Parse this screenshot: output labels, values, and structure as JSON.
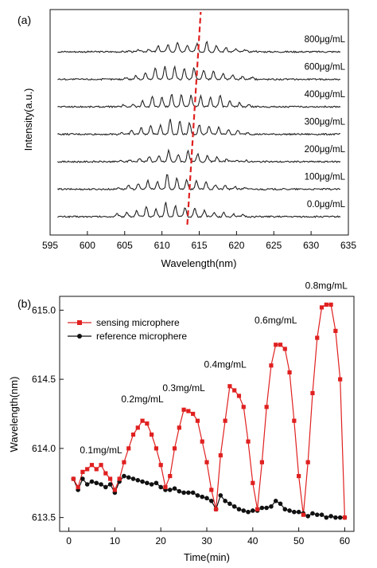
{
  "chart_data": [
    {
      "panel": "(a)",
      "type": "line",
      "xlabel": "Wavelength(nm)",
      "ylabel": "Intensity(a.u.)",
      "xlim": [
        595,
        635
      ],
      "xticks": [
        "595",
        "600",
        "605",
        "610",
        "615",
        "620",
        "625",
        "630",
        "635"
      ],
      "grid": false,
      "series": [
        {
          "name": "0.0μg/mL",
          "peak_heights": [
            0.15,
            0.25,
            0.3,
            0.55,
            0.4,
            0.75,
            0.6,
            0.5,
            0.45,
            0.35,
            0.25,
            0.2,
            0.15,
            0.1
          ],
          "resonance_nm": 613.4
        },
        {
          "name": "100μg/mL",
          "peak_heights": [
            0.1,
            0.2,
            0.3,
            0.45,
            0.4,
            0.8,
            0.6,
            0.5,
            0.45,
            0.4,
            0.25,
            0.2,
            0.15,
            0.1
          ],
          "resonance_nm": 613.6
        },
        {
          "name": "200μg/mL",
          "peak_heights": [
            0.05,
            0.1,
            0.2,
            0.3,
            0.3,
            0.6,
            0.4,
            0.55,
            0.4,
            0.35,
            0.25,
            0.15,
            0.1,
            0.08
          ],
          "resonance_nm": 613.8
        },
        {
          "name": "300μg/mL",
          "peak_heights": [
            0.1,
            0.2,
            0.35,
            0.45,
            0.5,
            0.8,
            0.7,
            0.6,
            0.5,
            0.45,
            0.35,
            0.25,
            0.2,
            0.1
          ],
          "resonance_nm": 614.0
        },
        {
          "name": "400μg/mL",
          "peak_heights": [
            0.1,
            0.15,
            0.3,
            0.55,
            0.5,
            0.7,
            0.65,
            0.6,
            0.55,
            0.5,
            0.6,
            0.3,
            0.2,
            0.1
          ],
          "resonance_nm": 614.2
        },
        {
          "name": "600μg/mL",
          "peak_heights": [
            0.1,
            0.2,
            0.35,
            0.6,
            0.7,
            0.65,
            0.55,
            0.6,
            0.5,
            0.45,
            0.3,
            0.25,
            0.15,
            0.1
          ],
          "resonance_nm": 614.6
        },
        {
          "name": "800μg/mL",
          "peak_heights": [
            0.05,
            0.1,
            0.15,
            0.3,
            0.4,
            0.5,
            0.35,
            0.45,
            0.55,
            0.35,
            0.25,
            0.15,
            0.1,
            0.05
          ],
          "resonance_nm": 615.0
        }
      ],
      "peak_positions_nm": [
        604.0,
        605.3,
        606.6,
        607.9,
        609.2,
        610.5,
        611.8,
        613.1,
        614.4,
        615.7,
        617.0,
        618.3,
        619.6,
        620.9
      ],
      "resonance_marker": {
        "color": "#e02020",
        "style": "dashed",
        "from_nm": 613.4,
        "to_nm": 615.2
      }
    },
    {
      "panel": "(b)",
      "type": "line",
      "xlabel": "Time(min)",
      "ylabel": "Wavelength(nm)",
      "xlim": [
        -2,
        62
      ],
      "ylim": [
        613.4,
        615.1
      ],
      "xticks": [
        "0",
        "10",
        "20",
        "30",
        "40",
        "50",
        "60"
      ],
      "yticks": [
        "613.5",
        "614.0",
        "614.5",
        "615.0"
      ],
      "legend_position": "top-left",
      "grid": false,
      "annotations": [
        "0.1mg/mL",
        "0.2mg/mL",
        "0.3mg/mL",
        "0.4mg/mL",
        "0.6mg/mL",
        "0.8mg/mL"
      ],
      "series": [
        {
          "name": "sensing microphere",
          "color": "#e02020",
          "marker": "square",
          "x": [
            1,
            2,
            3,
            4,
            5,
            6,
            7,
            8,
            9,
            10,
            11,
            12,
            13,
            14,
            15,
            16,
            17,
            18,
            19,
            20,
            21,
            22,
            23,
            24,
            25,
            26,
            27,
            28,
            29,
            30,
            31,
            32,
            33,
            34,
            35,
            36,
            37,
            38,
            39,
            40,
            41,
            42,
            43,
            44,
            45,
            46,
            47,
            48,
            49,
            50,
            51,
            52,
            53,
            54,
            55,
            56,
            57,
            58,
            59,
            60
          ],
          "y": [
            613.78,
            613.72,
            613.83,
            613.85,
            613.88,
            613.85,
            613.88,
            613.82,
            613.78,
            613.7,
            613.78,
            613.9,
            614.0,
            614.1,
            614.15,
            614.2,
            614.18,
            614.1,
            614.0,
            613.88,
            613.72,
            613.8,
            614.0,
            614.15,
            614.28,
            614.27,
            614.25,
            614.2,
            614.05,
            613.9,
            613.7,
            613.56,
            613.95,
            614.2,
            614.45,
            614.42,
            614.38,
            614.3,
            614.05,
            613.75,
            613.56,
            613.9,
            614.3,
            614.6,
            614.75,
            614.75,
            614.72,
            614.55,
            614.2,
            613.8,
            613.52,
            613.9,
            614.4,
            614.8,
            615.02,
            615.04,
            615.04,
            614.85,
            614.5,
            613.5
          ]
        },
        {
          "name": "reference microphere",
          "color": "#111111",
          "marker": "circle",
          "x": [
            1,
            2,
            3,
            4,
            5,
            6,
            7,
            8,
            9,
            10,
            11,
            12,
            13,
            14,
            15,
            16,
            17,
            18,
            19,
            20,
            21,
            22,
            23,
            24,
            25,
            26,
            27,
            28,
            29,
            30,
            31,
            32,
            33,
            34,
            35,
            36,
            37,
            38,
            39,
            40,
            41,
            42,
            43,
            44,
            45,
            46,
            47,
            48,
            49,
            50,
            51,
            52,
            53,
            54,
            55,
            56,
            57,
            58,
            59,
            60
          ],
          "y": [
            613.78,
            613.7,
            613.78,
            613.74,
            613.76,
            613.75,
            613.74,
            613.72,
            613.74,
            613.68,
            613.76,
            613.8,
            613.79,
            613.78,
            613.77,
            613.76,
            613.75,
            613.74,
            613.75,
            613.72,
            613.7,
            613.7,
            613.71,
            613.69,
            613.68,
            613.68,
            613.68,
            613.66,
            613.65,
            613.64,
            613.62,
            613.56,
            613.66,
            613.62,
            613.6,
            613.58,
            613.56,
            613.55,
            613.54,
            613.55,
            613.55,
            613.57,
            613.57,
            613.58,
            613.62,
            613.6,
            613.56,
            613.55,
            613.54,
            613.54,
            613.53,
            613.51,
            613.53,
            613.52,
            613.52,
            613.5,
            613.51,
            613.5,
            613.5,
            613.5
          ]
        }
      ]
    }
  ]
}
